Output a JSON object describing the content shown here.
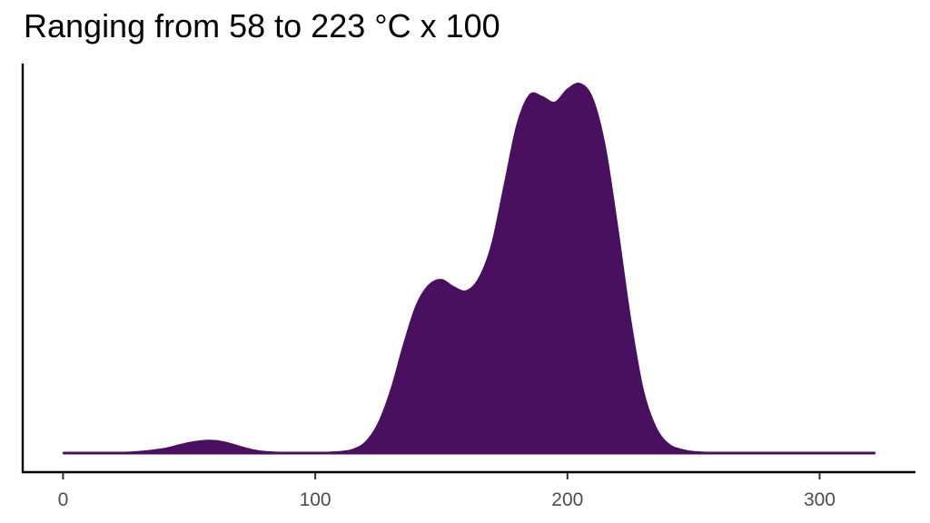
{
  "chart_data": {
    "type": "area",
    "title": "Ranging from 58 to 223 °C x 100",
    "xlabel": "",
    "ylabel": "",
    "xlim": [
      -16,
      338
    ],
    "ylim": [
      0,
      1
    ],
    "x_ticks": [
      0,
      100,
      200,
      300
    ],
    "x_tick_labels": [
      "0",
      "100",
      "200",
      "300"
    ],
    "y_ticks_shown": false,
    "grid": false,
    "legend": "none",
    "fill_color": "#4a1060",
    "series": [
      {
        "x": [
          0,
          20,
          30,
          40,
          45,
          50,
          55,
          58,
          62,
          66,
          70,
          75,
          80,
          90,
          100,
          110,
          115,
          120,
          125,
          130,
          135,
          140,
          145,
          150,
          155,
          160,
          165,
          170,
          175,
          180,
          185,
          190,
          195,
          200,
          205,
          210,
          215,
          220,
          225,
          230,
          235,
          240,
          245,
          250,
          260,
          280,
          300,
          322
        ],
        "y": [
          0,
          0.001,
          0.004,
          0.012,
          0.02,
          0.028,
          0.033,
          0.034,
          0.032,
          0.026,
          0.018,
          0.009,
          0.004,
          0.001,
          0.001,
          0.004,
          0.01,
          0.03,
          0.08,
          0.17,
          0.29,
          0.395,
          0.45,
          0.465,
          0.445,
          0.435,
          0.47,
          0.56,
          0.72,
          0.88,
          0.96,
          0.955,
          0.94,
          0.975,
          0.99,
          0.95,
          0.82,
          0.6,
          0.36,
          0.17,
          0.07,
          0.025,
          0.01,
          0.004,
          0.001,
          0,
          0,
          0
        ]
      }
    ]
  }
}
